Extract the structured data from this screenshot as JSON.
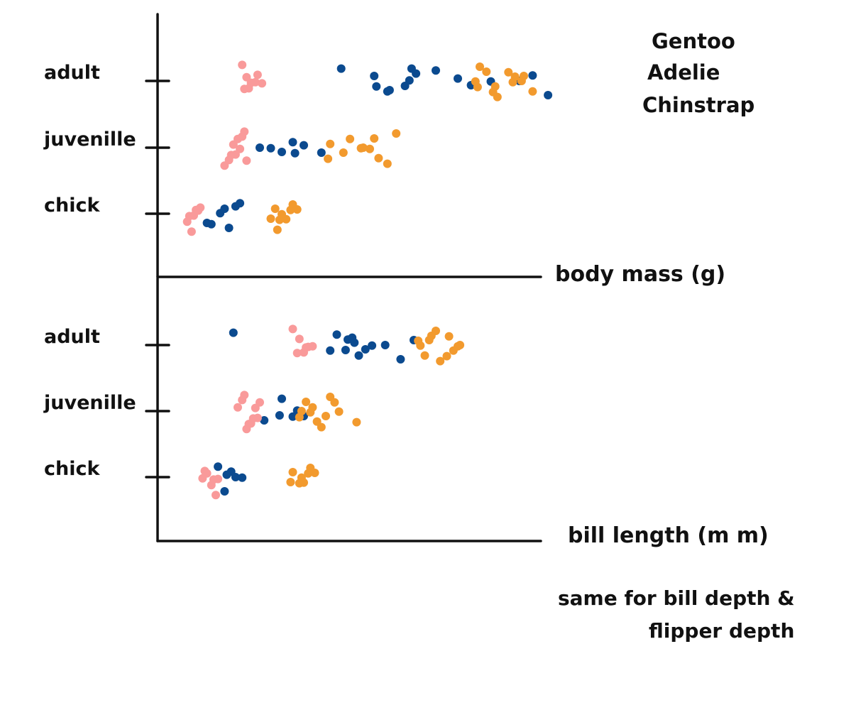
{
  "colors": {
    "Gentoo": "#0b4a8f",
    "Adelie": "#f99a9a",
    "Chinstrap": "#f29a2e",
    "axis": "#111111"
  },
  "legend": {
    "placement": "top-right",
    "entries": [
      "Gentoo",
      "Adelie",
      "Chinstrap"
    ]
  },
  "note": {
    "line1": "same for bill depth &",
    "line2": "flipper depth"
  },
  "chart_data": [
    {
      "type": "scatter",
      "title": "",
      "xlabel": "body mass (g)",
      "ylabel": "",
      "categories": [
        "adult",
        "juvenille",
        "chick"
      ],
      "grid": false,
      "series": [
        {
          "name": "Gentoo",
          "points": [
            {
              "x": 7.7,
              "y": "adult"
            },
            {
              "x": 9.3,
              "y": "adult"
            },
            {
              "x": 10.6,
              "y": "adult"
            },
            {
              "x": 13.6,
              "y": "adult"
            },
            {
              "x": 16.4,
              "y": "adult"
            },
            {
              "x": 13.0,
              "y": "adult"
            },
            {
              "x": 14.5,
              "y": "adult"
            },
            {
              "x": 15.8,
              "y": "adult"
            },
            {
              "x": 17.1,
              "y": "adult"
            },
            {
              "x": 12.0,
              "y": "adult"
            },
            {
              "x": 11.1,
              "y": "adult"
            },
            {
              "x": 9.8,
              "y": "adult"
            },
            {
              "x": 9.2,
              "y": "adult"
            },
            {
              "x": 9.9,
              "y": "adult"
            },
            {
              "x": 10.8,
              "y": "adult"
            },
            {
              "x": 10.9,
              "y": "adult"
            },
            {
              "x": 5.6,
              "y": "juvenille"
            },
            {
              "x": 6.8,
              "y": "juvenille"
            },
            {
              "x": 5.0,
              "y": "juvenille"
            },
            {
              "x": 5.5,
              "y": "juvenille"
            },
            {
              "x": 6.0,
              "y": "juvenille"
            },
            {
              "x": 4.5,
              "y": "juvenille"
            },
            {
              "x": 4.0,
              "y": "juvenille"
            },
            {
              "x": 2.6,
              "y": "chick"
            },
            {
              "x": 3.1,
              "y": "chick"
            },
            {
              "x": 2.9,
              "y": "chick"
            },
            {
              "x": 1.8,
              "y": "chick"
            },
            {
              "x": 2.4,
              "y": "chick"
            },
            {
              "x": 1.6,
              "y": "chick"
            },
            {
              "x": 2.2,
              "y": "chick"
            }
          ]
        },
        {
          "name": "Adelie",
          "points": [
            {
              "x": 3.2,
              "y": "adult"
            },
            {
              "x": 3.5,
              "y": "adult"
            },
            {
              "x": 3.8,
              "y": "adult"
            },
            {
              "x": 3.3,
              "y": "adult"
            },
            {
              "x": 3.6,
              "y": "adult"
            },
            {
              "x": 3.9,
              "y": "adult"
            },
            {
              "x": 4.1,
              "y": "adult"
            },
            {
              "x": 3.4,
              "y": "adult"
            },
            {
              "x": 2.4,
              "y": "juvenille"
            },
            {
              "x": 2.8,
              "y": "juvenille"
            },
            {
              "x": 3.2,
              "y": "juvenille"
            },
            {
              "x": 2.6,
              "y": "juvenille"
            },
            {
              "x": 3.0,
              "y": "juvenille"
            },
            {
              "x": 3.4,
              "y": "juvenille"
            },
            {
              "x": 2.9,
              "y": "juvenille"
            },
            {
              "x": 3.3,
              "y": "juvenille"
            },
            {
              "x": 2.7,
              "y": "juvenille"
            },
            {
              "x": 3.1,
              "y": "juvenille"
            },
            {
              "x": 0.7,
              "y": "chick"
            },
            {
              "x": 1.0,
              "y": "chick"
            },
            {
              "x": 1.3,
              "y": "chick"
            },
            {
              "x": 0.8,
              "y": "chick"
            },
            {
              "x": 1.1,
              "y": "chick"
            },
            {
              "x": 0.9,
              "y": "chick"
            },
            {
              "x": 1.2,
              "y": "chick"
            }
          ]
        },
        {
          "name": "Chinstrap",
          "points": [
            {
              "x": 13.8,
              "y": "adult"
            },
            {
              "x": 14.3,
              "y": "adult"
            },
            {
              "x": 14.8,
              "y": "adult"
            },
            {
              "x": 15.3,
              "y": "adult"
            },
            {
              "x": 15.9,
              "y": "adult"
            },
            {
              "x": 16.4,
              "y": "adult"
            },
            {
              "x": 14.0,
              "y": "adult"
            },
            {
              "x": 14.6,
              "y": "adult"
            },
            {
              "x": 15.5,
              "y": "adult"
            },
            {
              "x": 16.0,
              "y": "adult"
            },
            {
              "x": 14.7,
              "y": "adult"
            },
            {
              "x": 15.6,
              "y": "adult"
            },
            {
              "x": 13.9,
              "y": "adult"
            },
            {
              "x": 7.2,
              "y": "juvenille"
            },
            {
              "x": 7.8,
              "y": "juvenille"
            },
            {
              "x": 8.6,
              "y": "juvenille"
            },
            {
              "x": 9.2,
              "y": "juvenille"
            },
            {
              "x": 9.8,
              "y": "juvenille"
            },
            {
              "x": 8.1,
              "y": "juvenille"
            },
            {
              "x": 8.7,
              "y": "juvenille"
            },
            {
              "x": 9.4,
              "y": "juvenille"
            },
            {
              "x": 10.2,
              "y": "juvenille"
            },
            {
              "x": 7.1,
              "y": "juvenille"
            },
            {
              "x": 9.0,
              "y": "juvenille"
            },
            {
              "x": 4.7,
              "y": "chick"
            },
            {
              "x": 5.2,
              "y": "chick"
            },
            {
              "x": 5.7,
              "y": "chick"
            },
            {
              "x": 4.9,
              "y": "chick"
            },
            {
              "x": 5.4,
              "y": "chick"
            },
            {
              "x": 4.5,
              "y": "chick"
            },
            {
              "x": 5.0,
              "y": "chick"
            },
            {
              "x": 5.5,
              "y": "chick"
            },
            {
              "x": 4.8,
              "y": "chick"
            }
          ]
        }
      ]
    },
    {
      "type": "scatter",
      "title": "",
      "xlabel": "bill length (m m)",
      "ylabel": "",
      "categories": [
        "adult",
        "juvenille",
        "chick"
      ],
      "grid": false,
      "series": [
        {
          "name": "Gentoo",
          "points": [
            {
              "x": 2.8,
              "y": "adult"
            },
            {
              "x": 7.2,
              "y": "adult"
            },
            {
              "x": 7.9,
              "y": "adult"
            },
            {
              "x": 8.8,
              "y": "adult"
            },
            {
              "x": 8.0,
              "y": "adult"
            },
            {
              "x": 8.3,
              "y": "adult"
            },
            {
              "x": 9.1,
              "y": "adult"
            },
            {
              "x": 9.7,
              "y": "adult"
            },
            {
              "x": 10.4,
              "y": "adult"
            },
            {
              "x": 7.5,
              "y": "adult"
            },
            {
              "x": 8.2,
              "y": "adult"
            },
            {
              "x": 8.5,
              "y": "adult"
            },
            {
              "x": 11.0,
              "y": "adult"
            },
            {
              "x": 4.2,
              "y": "juvenille"
            },
            {
              "x": 5.7,
              "y": "juvenille"
            },
            {
              "x": 5.0,
              "y": "juvenille"
            },
            {
              "x": 5.5,
              "y": "juvenille"
            },
            {
              "x": 6.0,
              "y": "juvenille"
            },
            {
              "x": 4.9,
              "y": "juvenille"
            },
            {
              "x": 2.7,
              "y": "chick"
            },
            {
              "x": 2.5,
              "y": "chick"
            },
            {
              "x": 3.2,
              "y": "chick"
            },
            {
              "x": 2.9,
              "y": "chick"
            },
            {
              "x": 2.4,
              "y": "chick"
            },
            {
              "x": 2.1,
              "y": "chick"
            }
          ]
        },
        {
          "name": "Adelie",
          "points": [
            {
              "x": 5.5,
              "y": "adult"
            },
            {
              "x": 6.0,
              "y": "adult"
            },
            {
              "x": 6.4,
              "y": "adult"
            },
            {
              "x": 5.7,
              "y": "adult"
            },
            {
              "x": 6.2,
              "y": "adult"
            },
            {
              "x": 5.8,
              "y": "adult"
            },
            {
              "x": 6.1,
              "y": "adult"
            },
            {
              "x": 3.0,
              "y": "juvenille"
            },
            {
              "x": 3.4,
              "y": "juvenille"
            },
            {
              "x": 3.8,
              "y": "juvenille"
            },
            {
              "x": 3.2,
              "y": "juvenille"
            },
            {
              "x": 3.6,
              "y": "juvenille"
            },
            {
              "x": 4.0,
              "y": "juvenille"
            },
            {
              "x": 3.5,
              "y": "juvenille"
            },
            {
              "x": 3.9,
              "y": "juvenille"
            },
            {
              "x": 3.3,
              "y": "juvenille"
            },
            {
              "x": 3.7,
              "y": "juvenille"
            },
            {
              "x": 1.4,
              "y": "chick"
            },
            {
              "x": 1.8,
              "y": "chick"
            },
            {
              "x": 2.1,
              "y": "chick"
            },
            {
              "x": 1.5,
              "y": "chick"
            },
            {
              "x": 1.9,
              "y": "chick"
            },
            {
              "x": 1.6,
              "y": "chick"
            },
            {
              "x": 2.0,
              "y": "chick"
            }
          ]
        },
        {
          "name": "Chinstrap",
          "points": [
            {
              "x": 11.3,
              "y": "adult"
            },
            {
              "x": 11.8,
              "y": "adult"
            },
            {
              "x": 12.2,
              "y": "adult"
            },
            {
              "x": 12.6,
              "y": "adult"
            },
            {
              "x": 13.1,
              "y": "adult"
            },
            {
              "x": 11.5,
              "y": "adult"
            },
            {
              "x": 12.0,
              "y": "adult"
            },
            {
              "x": 12.5,
              "y": "adult"
            },
            {
              "x": 13.0,
              "y": "adult"
            },
            {
              "x": 11.7,
              "y": "adult"
            },
            {
              "x": 12.8,
              "y": "adult"
            },
            {
              "x": 11.2,
              "y": "adult"
            },
            {
              "x": 5.8,
              "y": "juvenille"
            },
            {
              "x": 6.4,
              "y": "juvenille"
            },
            {
              "x": 7.0,
              "y": "juvenille"
            },
            {
              "x": 7.6,
              "y": "juvenille"
            },
            {
              "x": 6.1,
              "y": "juvenille"
            },
            {
              "x": 6.8,
              "y": "juvenille"
            },
            {
              "x": 7.4,
              "y": "juvenille"
            },
            {
              "x": 5.9,
              "y": "juvenille"
            },
            {
              "x": 6.6,
              "y": "juvenille"
            },
            {
              "x": 7.2,
              "y": "juvenille"
            },
            {
              "x": 8.4,
              "y": "juvenille"
            },
            {
              "x": 6.3,
              "y": "juvenille"
            },
            {
              "x": 5.5,
              "y": "chick"
            },
            {
              "x": 6.0,
              "y": "chick"
            },
            {
              "x": 6.5,
              "y": "chick"
            },
            {
              "x": 5.8,
              "y": "chick"
            },
            {
              "x": 6.2,
              "y": "chick"
            },
            {
              "x": 5.4,
              "y": "chick"
            },
            {
              "x": 5.9,
              "y": "chick"
            },
            {
              "x": 6.3,
              "y": "chick"
            }
          ]
        }
      ]
    }
  ]
}
